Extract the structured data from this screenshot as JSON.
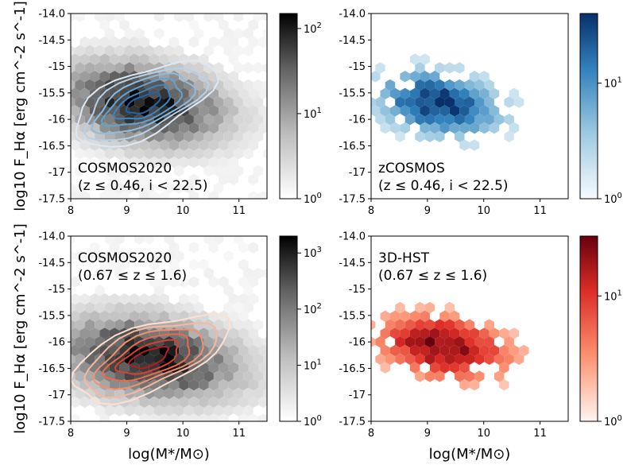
{
  "chart_data": [
    {
      "type": "heatmap",
      "panel": "top-left",
      "label_line1": "COSMOS2020",
      "label_line2": "(z ≤ 0.46, i < 22.5)",
      "xlim": [
        8,
        11.5
      ],
      "ylim": [
        -17.5,
        -14.0
      ],
      "xticks": [
        "8",
        "9",
        "10",
        "11"
      ],
      "yticks": [
        "-14.0",
        "-14.5",
        "-15",
        "-15.5",
        "-16",
        "-16.5",
        "-17",
        "-17.5"
      ],
      "ylabel": "log10 F_Hα [erg cm^-2 s^-1]",
      "colormap": "grey",
      "colorbar_ticks": [
        "10^0",
        "10^1",
        "10^2"
      ],
      "colorbar_range": [
        1,
        150
      ],
      "density_peak": {
        "x": 9.3,
        "y": -15.7
      },
      "density_spread": {
        "x": 0.85,
        "y": 0.55
      },
      "contour_colors": [
        "#dce9f5",
        "#b5d2ea",
        "#8cbce2",
        "#5fa4d6",
        "#3a86c4",
        "#1f64ad"
      ],
      "contour_style": "blue"
    },
    {
      "type": "heatmap",
      "panel": "top-right",
      "label_line1": "zCOSMOS",
      "label_line2": "(z ≤ 0.46, i < 22.5)",
      "xlim": [
        8,
        11.5
      ],
      "ylim": [
        -17.5,
        -14.0
      ],
      "xticks": [
        "8",
        "9",
        "10",
        "11"
      ],
      "yticks": [
        "-14.0",
        "-14.5",
        "-15",
        "-15.5",
        "-16",
        "-16.5",
        "-17",
        "-17.5"
      ],
      "colormap": "blue",
      "colorbar_ticks": [
        "10^0",
        "10^1"
      ],
      "colorbar_range": [
        1,
        40
      ],
      "density_peak": {
        "x": 9.2,
        "y": -15.7
      },
      "density_spread": {
        "x": 0.75,
        "y": 0.5
      }
    },
    {
      "type": "heatmap",
      "panel": "bottom-left",
      "label_line1": "COSMOS2020",
      "label_line2": "(0.67 ≤ z ≤ 1.6)",
      "xlim": [
        8,
        11.5
      ],
      "ylim": [
        -17.5,
        -14.0
      ],
      "xticks": [
        "8",
        "9",
        "10",
        "11"
      ],
      "yticks": [
        "-14.0",
        "-14.5",
        "-15",
        "-15.5",
        "-16",
        "-16.5",
        "-17",
        "-17.5"
      ],
      "xlabel": "log(M*/M⊙)",
      "ylabel": "log10 F_Hα [erg cm^-2 s^-1]",
      "colormap": "grey",
      "colorbar_ticks": [
        "10^0",
        "10^1",
        "10^2",
        "10^3"
      ],
      "colorbar_range": [
        1,
        2000
      ],
      "density_peak": {
        "x": 9.4,
        "y": -16.3
      },
      "density_spread": {
        "x": 0.95,
        "y": 0.55
      },
      "contour_colors": [
        "#fde0d2",
        "#f9b89e",
        "#f4906f",
        "#ec6a4c",
        "#d8412f",
        "#b31d22"
      ],
      "contour_style": "red"
    },
    {
      "type": "heatmap",
      "panel": "bottom-right",
      "label_line1": "3D-HST",
      "label_line2": "(0.67 ≤ z ≤ 1.6)",
      "xlim": [
        8,
        11.5
      ],
      "ylim": [
        -17.5,
        -14.0
      ],
      "xticks": [
        "8",
        "9",
        "10",
        "11"
      ],
      "yticks": [
        "-14.0",
        "-14.5",
        "-15",
        "-15.5",
        "-16",
        "-16.5",
        "-17",
        "-17.5"
      ],
      "xlabel": "log(M*/M⊙)",
      "colormap": "red",
      "colorbar_ticks": [
        "10^0",
        "10^1"
      ],
      "colorbar_range": [
        1,
        30
      ],
      "density_peak": {
        "x": 9.3,
        "y": -16.1
      },
      "density_spread": {
        "x": 0.8,
        "y": 0.5
      }
    }
  ]
}
